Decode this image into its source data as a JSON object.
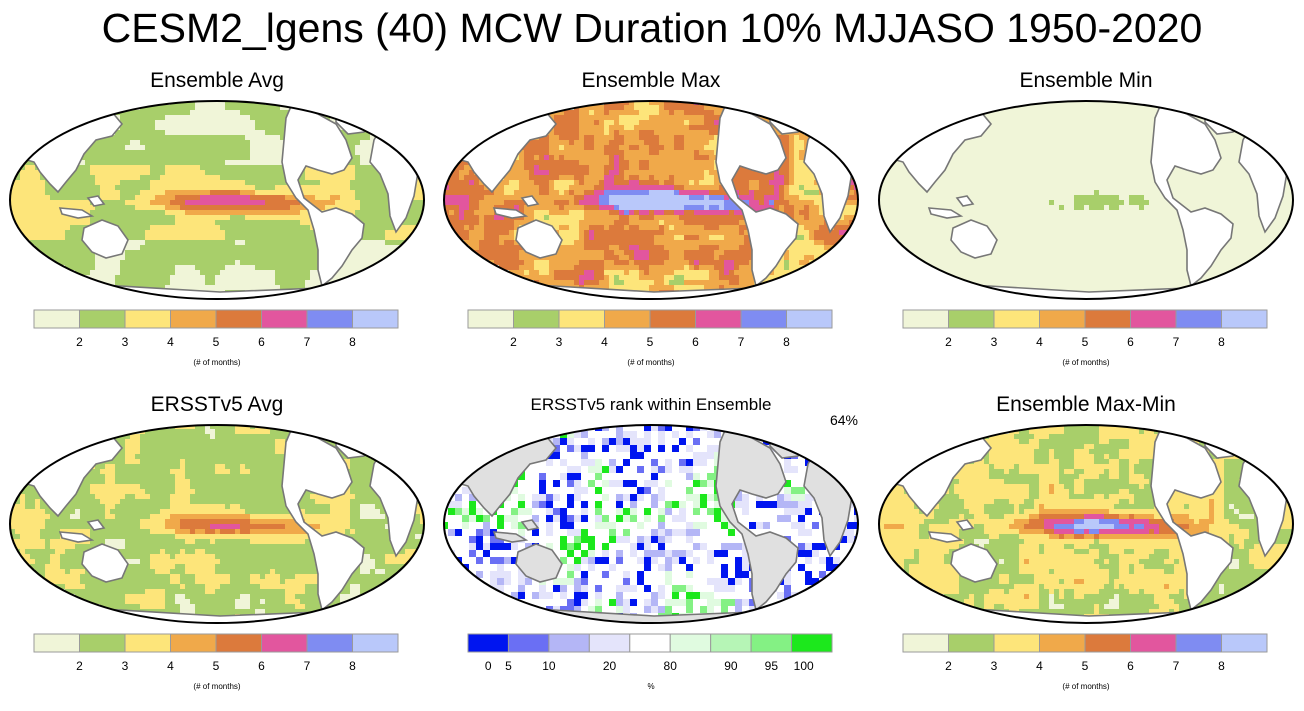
{
  "title": "CESM2_lgens (40) MCW Duration 10% MJJASO 1950-2020",
  "colors": {
    "months": [
      "#f0f5d8",
      "#a8cf6a",
      "#fde57a",
      "#f0a94a",
      "#dc7a3c",
      "#e2569e",
      "#7f8cf2",
      "#b9c8fa"
    ],
    "rank": [
      "#0015f0",
      "#6a6ff4",
      "#b4b6f6",
      "#e4e4fb",
      "#ffffff",
      "#e0fbe0",
      "#b6f5b6",
      "#84f184",
      "#1ce81c"
    ],
    "land": "#ffffff",
    "land_masked": "#e0e0e0",
    "coast": "#777777"
  },
  "chart_data": [
    {
      "type": "heatmap",
      "title": "Ensemble Avg",
      "panel": "ens-avg",
      "colorbar": {
        "tick_labels": [
          "2",
          "3",
          "4",
          "5",
          "6",
          "7",
          "8"
        ],
        "units": "(# of months)"
      }
    },
    {
      "type": "heatmap",
      "title": "Ensemble Max",
      "panel": "ens-max",
      "colorbar": {
        "tick_labels": [
          "2",
          "3",
          "4",
          "5",
          "6",
          "7",
          "8"
        ],
        "units": "(# of months)"
      }
    },
    {
      "type": "heatmap",
      "title": "Ensemble Min",
      "panel": "ens-min",
      "colorbar": {
        "tick_labels": [
          "2",
          "3",
          "4",
          "5",
          "6",
          "7",
          "8"
        ],
        "units": "(# of months)"
      }
    },
    {
      "type": "heatmap",
      "title": "ERSSTv5 Avg",
      "panel": "obs-avg",
      "colorbar": {
        "tick_labels": [
          "2",
          "3",
          "4",
          "5",
          "6",
          "7",
          "8"
        ],
        "units": "(# of months)"
      }
    },
    {
      "type": "heatmap",
      "title": "ERSSTv5 rank within Ensemble",
      "panel": "obs-rank",
      "annotation": "64%",
      "colorbar": {
        "tick_labels": [
          "0",
          "5",
          "10",
          "20",
          "80",
          "90",
          "95",
          "100"
        ],
        "units": "%"
      }
    },
    {
      "type": "heatmap",
      "title": "Ensemble Max-Min",
      "panel": "ens-range",
      "colorbar": {
        "tick_labels": [
          "2",
          "3",
          "4",
          "5",
          "6",
          "7",
          "8"
        ],
        "units": "(# of months)"
      }
    }
  ]
}
